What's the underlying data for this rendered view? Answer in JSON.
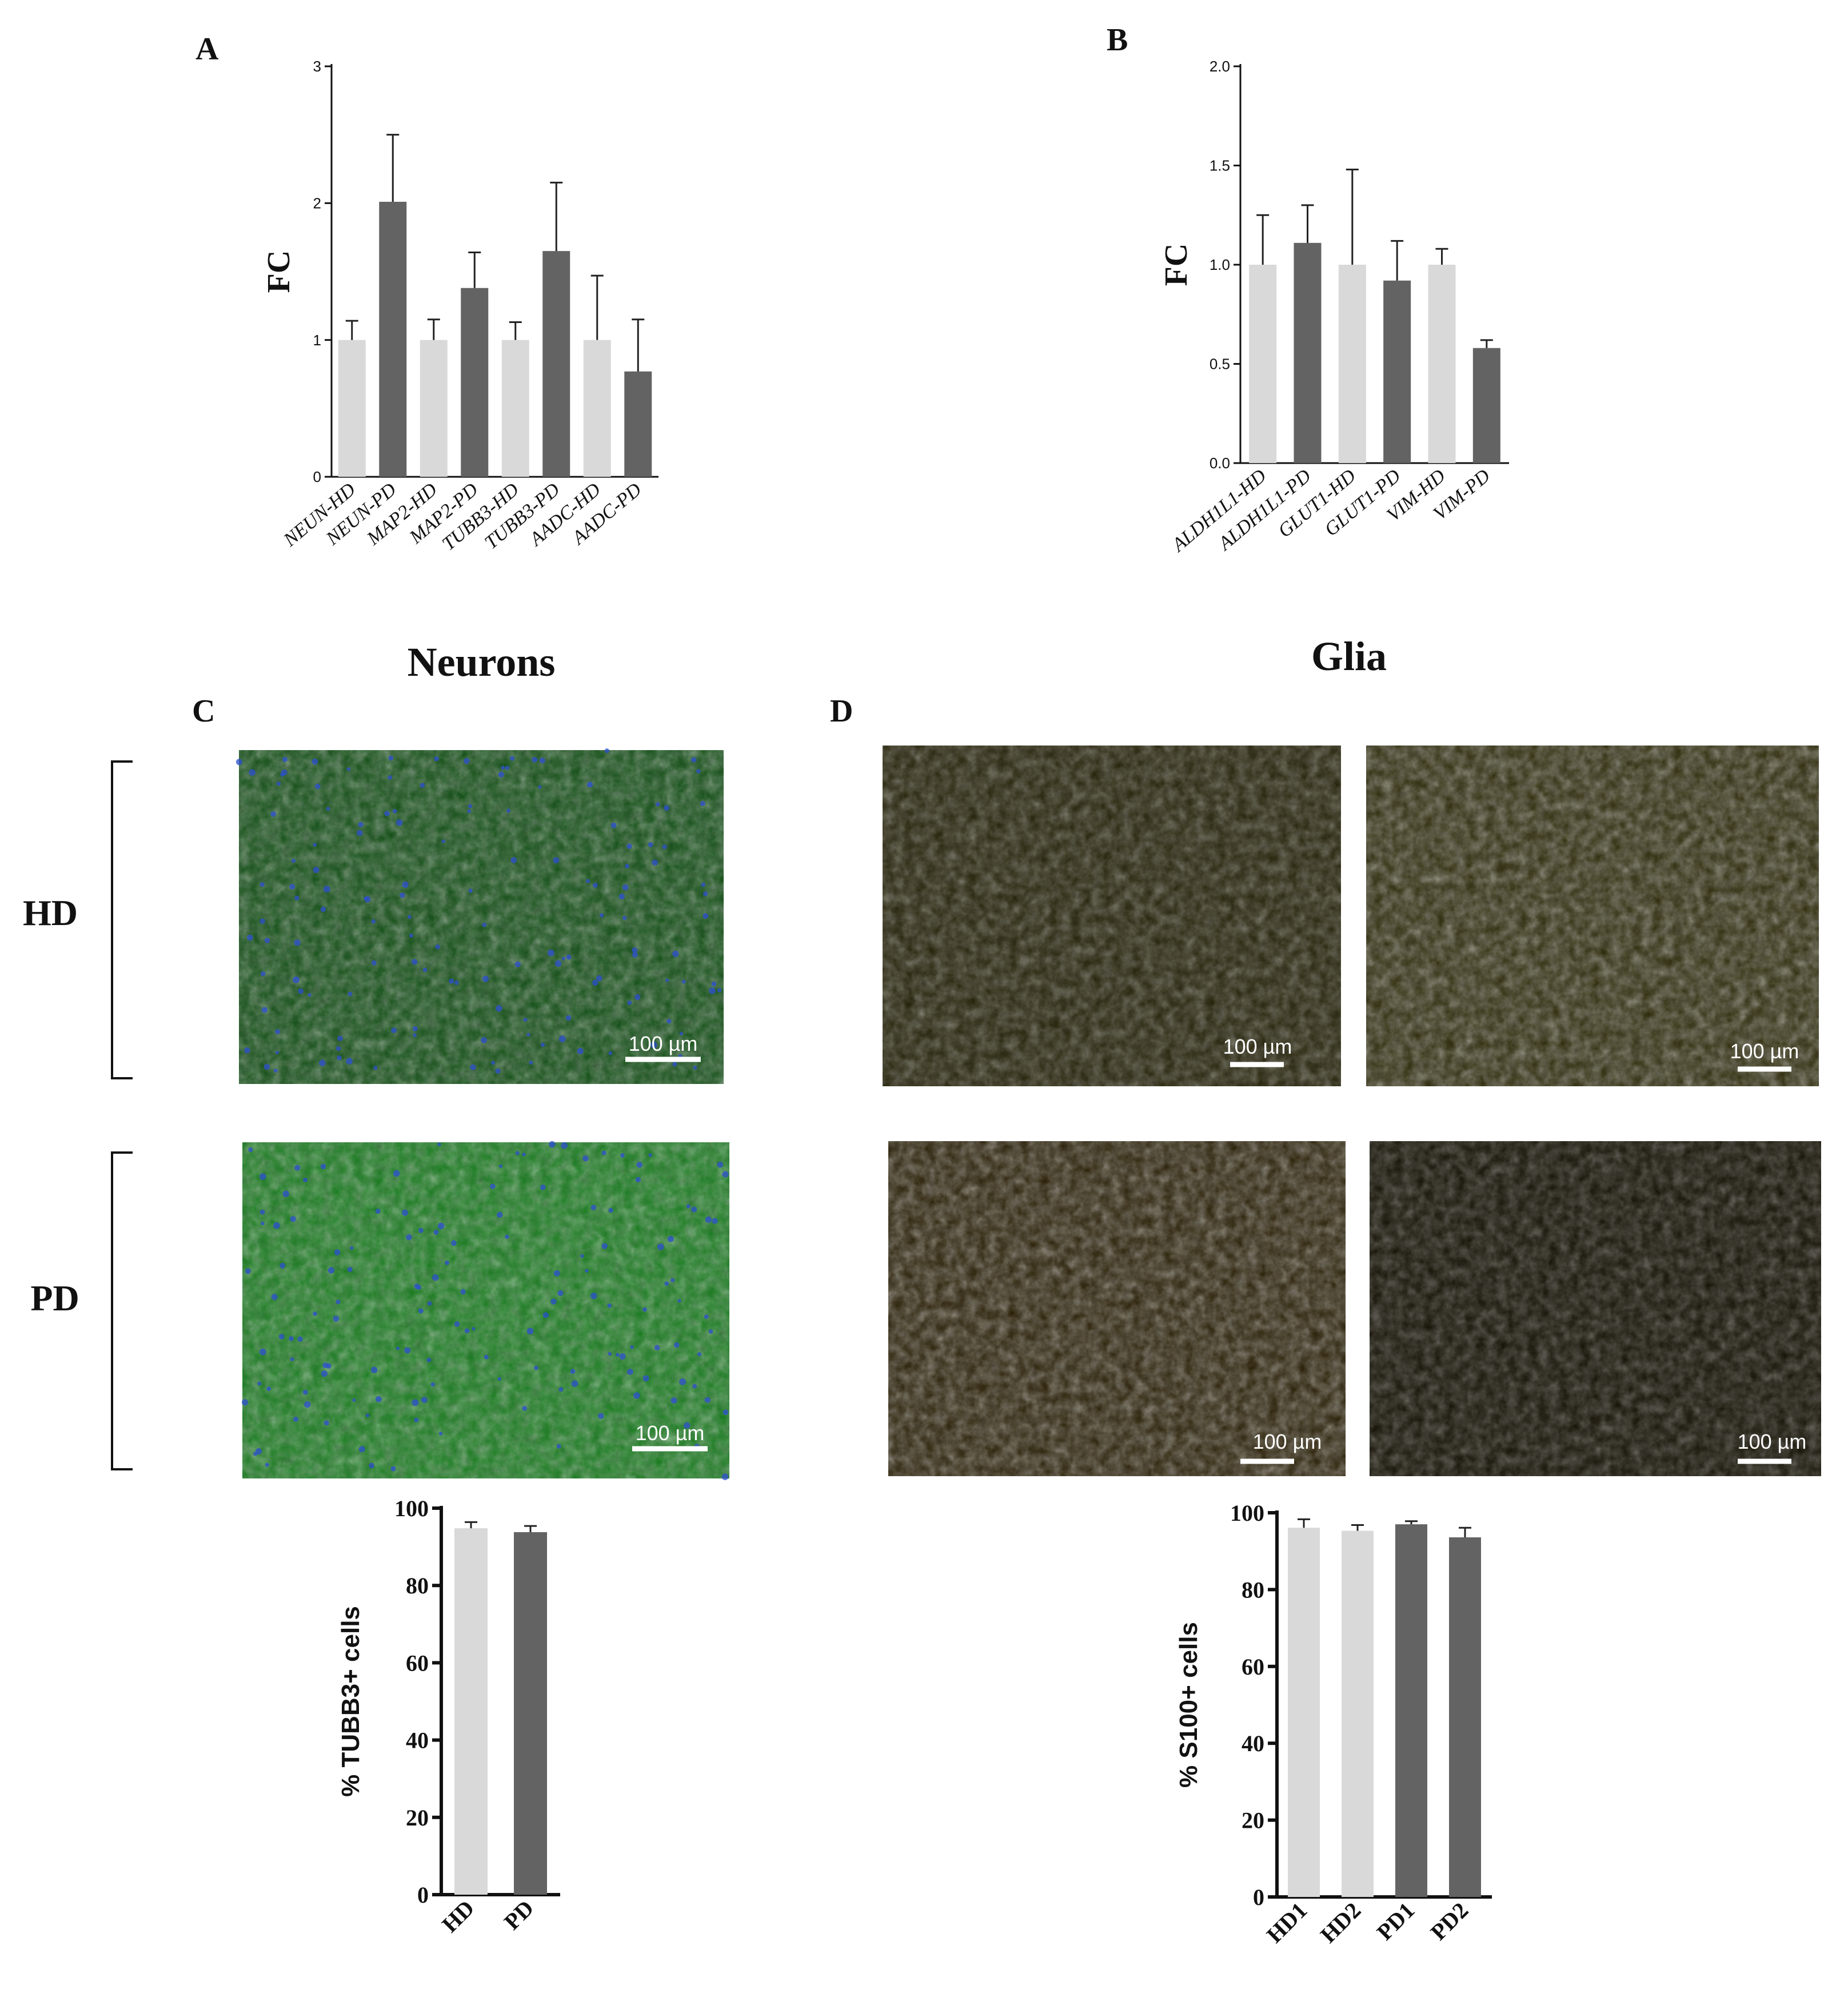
{
  "panel_labels": {
    "A": "A",
    "B": "B",
    "C": "C",
    "D": "D"
  },
  "section_titles": {
    "neurons": "Neurons",
    "glia": "Glia"
  },
  "row_labels": {
    "hd": "HD",
    "pd": "PD"
  },
  "scale_bar_label": "100 µm",
  "colors": {
    "hd_bar": "#d9d9d9",
    "pd_bar": "#636363",
    "neuron_stain": "#1f9a2a",
    "nuclei_stain": "#2c4fd0",
    "glia_hd_stain": "#c8c21e",
    "glia_pd_stain": "#f0c414"
  },
  "chart_data": [
    {
      "id": "A",
      "type": "bar",
      "ylabel": "FC",
      "ylim": [
        0,
        3
      ],
      "yticks": [
        0,
        1,
        2,
        3
      ],
      "ytick_labels": [
        "0",
        "1",
        "2",
        "3"
      ],
      "categories": [
        "NEUN-HD",
        "NEUN-PD",
        "MAP2-HD",
        "MAP2-PD",
        "TUBB3-HD",
        "TUBB3-PD",
        "AADC-HD",
        "AADC-PD"
      ],
      "values": [
        1.0,
        2.01,
        1.0,
        1.38,
        1.0,
        1.65,
        1.0,
        0.77
      ],
      "errors": [
        0.14,
        0.49,
        0.15,
        0.26,
        0.13,
        0.5,
        0.47,
        0.38
      ],
      "groups": [
        "HD",
        "PD",
        "HD",
        "PD",
        "HD",
        "PD",
        "HD",
        "PD"
      ]
    },
    {
      "id": "B",
      "type": "bar",
      "ylabel": "FC",
      "ylim": [
        0,
        2.0
      ],
      "yticks": [
        0,
        0.5,
        1.0,
        1.5,
        2.0
      ],
      "ytick_labels": [
        "0.0",
        "0.5",
        "1.0",
        "1.5",
        "2.0"
      ],
      "categories": [
        "ALDH1L1-HD",
        "ALDH1L1-PD",
        "GLUT1-HD",
        "GLUT1-PD",
        "VIM-HD",
        "VIM-PD"
      ],
      "values": [
        1.0,
        1.11,
        1.0,
        0.92,
        1.0,
        0.58
      ],
      "errors": [
        0.25,
        0.19,
        0.48,
        0.2,
        0.08,
        0.04
      ],
      "groups": [
        "HD",
        "PD",
        "HD",
        "PD",
        "HD",
        "PD"
      ]
    },
    {
      "id": "C-quant",
      "type": "bar",
      "ylabel": "% TUBB3+ cells",
      "ylim": [
        0,
        100
      ],
      "yticks": [
        0,
        20,
        40,
        60,
        80,
        100
      ],
      "ytick_labels": [
        "0",
        "20",
        "40",
        "60",
        "80",
        "100"
      ],
      "categories": [
        "HD",
        "PD"
      ],
      "values": [
        94.8,
        93.8
      ],
      "errors": [
        1.6,
        1.6
      ],
      "groups": [
        "HD",
        "PD"
      ]
    },
    {
      "id": "D-quant",
      "type": "bar",
      "ylabel": "% S100+ cells",
      "ylim": [
        0,
        100
      ],
      "yticks": [
        0,
        20,
        40,
        60,
        80,
        100
      ],
      "ytick_labels": [
        "0",
        "20",
        "40",
        "60",
        "80",
        "100"
      ],
      "categories": [
        "HD1",
        "HD2",
        "PD1",
        "PD2"
      ],
      "values": [
        96.1,
        95.3,
        97.0,
        93.6
      ],
      "errors": [
        2.2,
        1.5,
        0.8,
        2.5
      ],
      "groups": [
        "HD",
        "HD",
        "PD",
        "PD"
      ]
    }
  ]
}
